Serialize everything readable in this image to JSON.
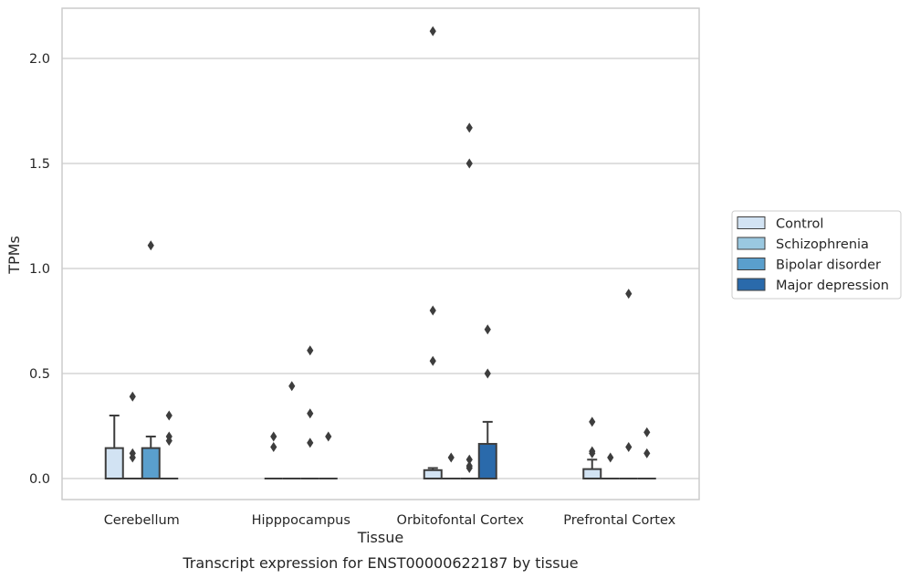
{
  "chart_data": {
    "type": "box",
    "title": "Transcript expression for ENST00000622187 by tissue",
    "xlabel": "Tissue",
    "ylabel": "TPMs",
    "ylim": [
      -0.1,
      2.25
    ],
    "yticks": [
      0.0,
      0.5,
      1.0,
      1.5,
      2.0
    ],
    "ytick_labels": [
      "0.0",
      "0.5",
      "1.0",
      "1.5",
      "2.0"
    ],
    "grid": true,
    "legend_position": "right",
    "categories": [
      "Cerebellum",
      "Hipppocampus",
      "Orbitofontal Cortex",
      "Prefrontal Cortex"
    ],
    "series": [
      {
        "name": "Control",
        "color": "#d2e3f3",
        "boxes": [
          {
            "q1": 0.0,
            "median": 0.0,
            "q3": 0.145,
            "whisker_low": 0.0,
            "whisker_high": 0.3,
            "outliers": []
          },
          {
            "q1": 0.0,
            "median": 0.0,
            "q3": 0.0,
            "whisker_low": 0.0,
            "whisker_high": 0.0,
            "outliers": [
              0.2,
              0.15
            ]
          },
          {
            "q1": 0.0,
            "median": 0.0,
            "q3": 0.04,
            "whisker_low": 0.0,
            "whisker_high": 0.05,
            "outliers": [
              2.13,
              0.8,
              0.56
            ]
          },
          {
            "q1": 0.0,
            "median": 0.0,
            "q3": 0.045,
            "whisker_low": 0.0,
            "whisker_high": 0.09,
            "outliers": [
              0.27,
              0.13,
              0.12
            ]
          }
        ]
      },
      {
        "name": "Schizophrenia",
        "color": "#9ac8e0",
        "boxes": [
          {
            "q1": 0.0,
            "median": 0.0,
            "q3": 0.0,
            "whisker_low": 0.0,
            "whisker_high": 0.0,
            "outliers": [
              0.39,
              0.12,
              0.1
            ]
          },
          {
            "q1": 0.0,
            "median": 0.0,
            "q3": 0.0,
            "whisker_low": 0.0,
            "whisker_high": 0.0,
            "outliers": [
              0.44
            ]
          },
          {
            "q1": 0.0,
            "median": 0.0,
            "q3": 0.0,
            "whisker_low": 0.0,
            "whisker_high": 0.0,
            "outliers": [
              0.1
            ]
          },
          {
            "q1": 0.0,
            "median": 0.0,
            "q3": 0.0,
            "whisker_low": 0.0,
            "whisker_high": 0.0,
            "outliers": [
              0.1
            ]
          }
        ]
      },
      {
        "name": "Bipolar disorder",
        "color": "#5a9fcd",
        "boxes": [
          {
            "q1": 0.0,
            "median": 0.0,
            "q3": 0.145,
            "whisker_low": 0.0,
            "whisker_high": 0.2,
            "outliers": [
              1.11
            ]
          },
          {
            "q1": 0.0,
            "median": 0.0,
            "q3": 0.0,
            "whisker_low": 0.0,
            "whisker_high": 0.0,
            "outliers": [
              0.61,
              0.31,
              0.17
            ]
          },
          {
            "q1": 0.0,
            "median": 0.0,
            "q3": 0.0,
            "whisker_low": 0.0,
            "whisker_high": 0.0,
            "outliers": [
              1.67,
              1.5,
              0.09,
              0.06,
              0.05
            ]
          },
          {
            "q1": 0.0,
            "median": 0.0,
            "q3": 0.0,
            "whisker_low": 0.0,
            "whisker_high": 0.0,
            "outliers": [
              0.88,
              0.15
            ]
          }
        ]
      },
      {
        "name": "Major depression",
        "color": "#2a6aab",
        "boxes": [
          {
            "q1": 0.0,
            "median": 0.0,
            "q3": 0.0,
            "whisker_low": 0.0,
            "whisker_high": 0.0,
            "outliers": [
              0.3,
              0.2,
              0.18
            ]
          },
          {
            "q1": 0.0,
            "median": 0.0,
            "q3": 0.0,
            "whisker_low": 0.0,
            "whisker_high": 0.0,
            "outliers": [
              0.2
            ]
          },
          {
            "q1": 0.0,
            "median": 0.0,
            "q3": 0.165,
            "whisker_low": 0.0,
            "whisker_high": 0.27,
            "outliers": [
              0.71,
              0.5
            ]
          },
          {
            "q1": 0.0,
            "median": 0.0,
            "q3": 0.0,
            "whisker_low": 0.0,
            "whisker_high": 0.0,
            "outliers": [
              0.22,
              0.12
            ]
          }
        ]
      }
    ]
  }
}
